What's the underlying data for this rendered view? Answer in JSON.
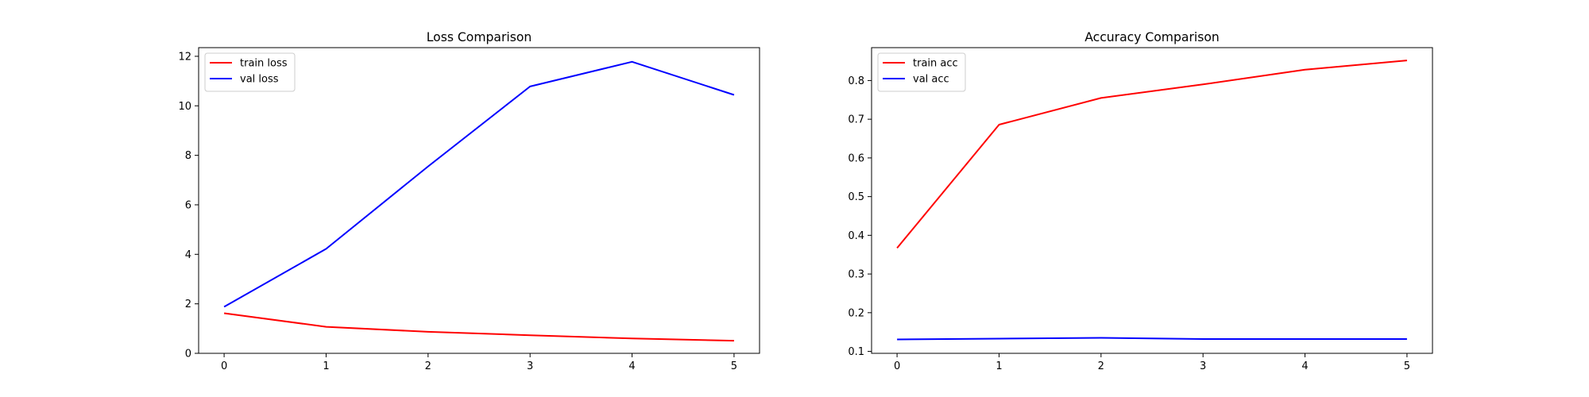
{
  "chart_data": [
    {
      "type": "line",
      "title": "Loss Comparison",
      "xlabel": "",
      "ylabel": "",
      "x": [
        0,
        1,
        2,
        3,
        4,
        5
      ],
      "xlim": [
        -0.25,
        5.25
      ],
      "ylim": [
        0,
        12.35
      ],
      "xticks": [
        0,
        1,
        2,
        3,
        4,
        5
      ],
      "yticks": [
        0,
        2,
        4,
        6,
        8,
        10,
        12
      ],
      "grid": false,
      "legend_position": "top-left",
      "series": [
        {
          "name": "train loss",
          "color": "#ff0000",
          "values": [
            1.62,
            1.07,
            0.87,
            0.73,
            0.6,
            0.51
          ]
        },
        {
          "name": "val loss",
          "color": "#0000ff",
          "values": [
            1.88,
            4.22,
            7.55,
            10.78,
            11.78,
            10.44
          ]
        }
      ]
    },
    {
      "type": "line",
      "title": "Accuracy Comparison",
      "xlabel": "",
      "ylabel": "",
      "x": [
        0,
        1,
        2,
        3,
        4,
        5
      ],
      "xlim": [
        -0.25,
        5.25
      ],
      "ylim": [
        0.095,
        0.885
      ],
      "xticks": [
        0,
        1,
        2,
        3,
        4,
        5
      ],
      "yticks": [
        0.1,
        0.2,
        0.3,
        0.4,
        0.5,
        0.6,
        0.7,
        0.8
      ],
      "ytick_labels": [
        "0.1",
        "0.2",
        "0.3",
        "0.4",
        "0.5",
        "0.6",
        "0.7",
        "0.8"
      ],
      "grid": false,
      "legend_position": "top-left",
      "series": [
        {
          "name": "train acc",
          "color": "#ff0000",
          "values": [
            0.367,
            0.686,
            0.755,
            0.79,
            0.828,
            0.852
          ]
        },
        {
          "name": "val acc",
          "color": "#0000ff",
          "values": [
            0.131,
            0.133,
            0.135,
            0.132,
            0.132,
            0.132
          ]
        }
      ]
    }
  ]
}
